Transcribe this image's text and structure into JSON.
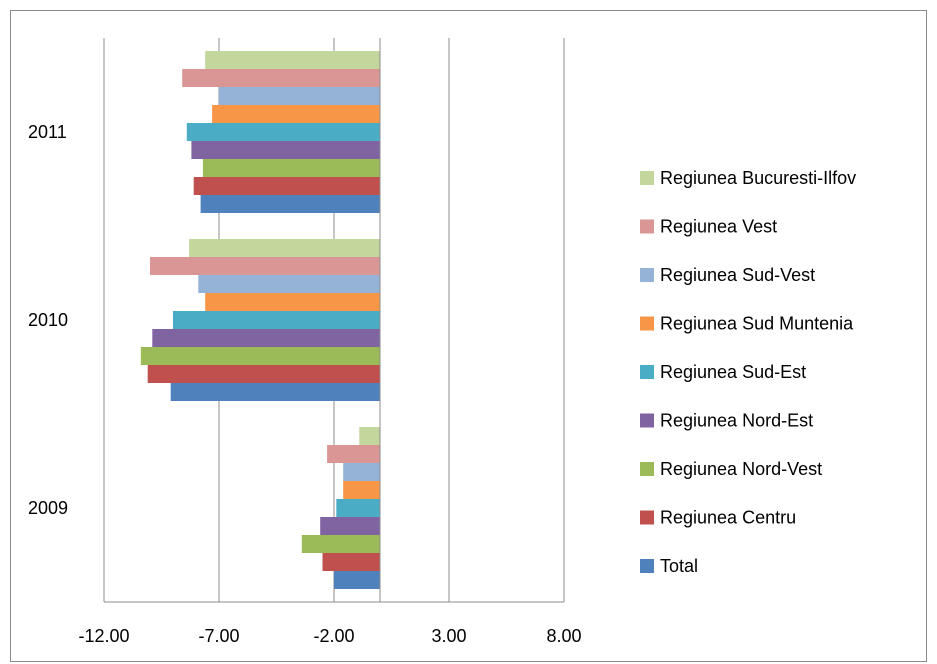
{
  "chart_data": {
    "type": "bar",
    "orientation": "horizontal",
    "title": "",
    "xlabel": "",
    "ylabel": "",
    "categories": [
      "2009",
      "2010",
      "2011"
    ],
    "x_ticks": [
      "-12.00",
      "-7.00",
      "-2.00",
      "3.00",
      "8.00"
    ],
    "xlim": [
      -12,
      8
    ],
    "grid": "vertical",
    "legend_position": "right",
    "series": [
      {
        "name": "Total",
        "color": "#4F81BD",
        "values": [
          -2.0,
          -9.1,
          -7.8
        ]
      },
      {
        "name": "Regiunea Centru",
        "color": "#C0504D",
        "values": [
          -2.5,
          -10.1,
          -8.1
        ]
      },
      {
        "name": "Regiunea Nord-Vest",
        "color": "#9BBB59",
        "values": [
          -3.4,
          -10.4,
          -7.7
        ]
      },
      {
        "name": "Regiunea Nord-Est",
        "color": "#8064A2",
        "values": [
          -2.6,
          -9.9,
          -8.2
        ]
      },
      {
        "name": "Regiunea Sud-Est",
        "color": "#4BACC6",
        "values": [
          -1.9,
          -9.0,
          -8.4
        ]
      },
      {
        "name": "Regiunea Sud Muntenia",
        "color": "#F79646",
        "values": [
          -1.6,
          -7.6,
          -7.3
        ]
      },
      {
        "name": "Regiunea Sud-Vest",
        "color": "#95B3D7",
        "values": [
          -1.6,
          -7.9,
          -7.0
        ]
      },
      {
        "name": "Regiunea Vest",
        "color": "#D99694",
        "values": [
          -2.3,
          -10.0,
          -8.6
        ]
      },
      {
        "name": "Regiunea Bucuresti-Ilfov",
        "color": "#C3D69B",
        "values": [
          -0.9,
          -8.3,
          -7.6
        ]
      }
    ]
  }
}
